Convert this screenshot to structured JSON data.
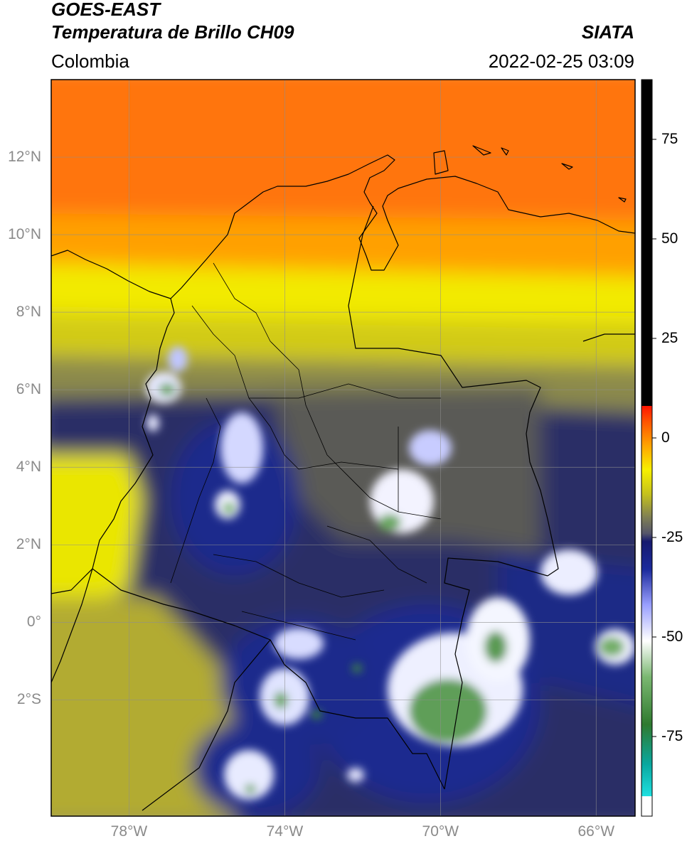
{
  "header": {
    "satellite": "GOES-EAST",
    "product": "Temperatura de Brillo CH09",
    "brand": "SIATA",
    "region": "Colombia",
    "datetime": "2022-02-25 03:09"
  },
  "map": {
    "lon_range": [
      -80,
      -65
    ],
    "lat_range": [
      -5,
      14
    ],
    "lat_ticks": [
      {
        "value": 12,
        "label": "12°N"
      },
      {
        "value": 10,
        "label": "10°N"
      },
      {
        "value": 8,
        "label": "8°N"
      },
      {
        "value": 6,
        "label": "6°N"
      },
      {
        "value": 4,
        "label": "4°N"
      },
      {
        "value": 2,
        "label": "2°N"
      },
      {
        "value": 0,
        "label": "0°"
      },
      {
        "value": -2,
        "label": "2°S"
      }
    ],
    "lon_ticks": [
      {
        "value": -78,
        "label": "78°W"
      },
      {
        "value": -74,
        "label": "74°W"
      },
      {
        "value": -70,
        "label": "70°W"
      },
      {
        "value": -66,
        "label": "66°W"
      }
    ],
    "gridlines": true
  },
  "colorbar": {
    "range": [
      -95,
      90
    ],
    "ticks": [
      {
        "value": 75,
        "label": "75"
      },
      {
        "value": 50,
        "label": "50"
      },
      {
        "value": 25,
        "label": "25"
      },
      {
        "value": 0,
        "label": "0"
      },
      {
        "value": -25,
        "label": "-25"
      },
      {
        "value": -50,
        "label": "-50"
      },
      {
        "value": -75,
        "label": "-75"
      }
    ],
    "stops": [
      {
        "value": -95,
        "color": "#ffffff"
      },
      {
        "value": -90,
        "color": "#ffffff"
      },
      {
        "value": -90,
        "color": "#1fe0e0"
      },
      {
        "value": -82,
        "color": "#0aa8a0"
      },
      {
        "value": -72,
        "color": "#2f7a2f"
      },
      {
        "value": -60,
        "color": "#7bb872"
      },
      {
        "value": -51,
        "color": "#ffffff"
      },
      {
        "value": -42,
        "color": "#9aa0ff"
      },
      {
        "value": -33,
        "color": "#1b2a9c"
      },
      {
        "value": -26,
        "color": "#161a6e"
      },
      {
        "value": -24,
        "color": "#55556a"
      },
      {
        "value": -20,
        "color": "#7e7e55"
      },
      {
        "value": -14,
        "color": "#c6c21c"
      },
      {
        "value": -8,
        "color": "#f7f000"
      },
      {
        "value": -2,
        "color": "#ffa500"
      },
      {
        "value": 4,
        "color": "#ff5500"
      },
      {
        "value": 8,
        "color": "#ff1500"
      },
      {
        "value": 8,
        "color": "#000000"
      },
      {
        "value": 90,
        "color": "#000000"
      }
    ]
  }
}
